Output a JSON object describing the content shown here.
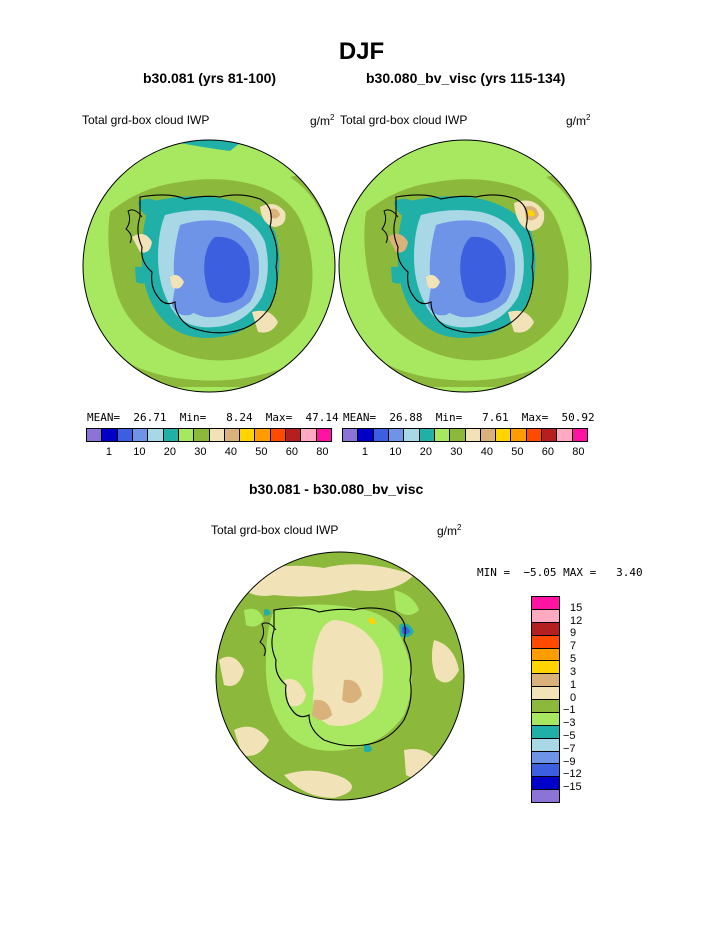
{
  "title": "DJF",
  "panels": [
    {
      "title": "b30.081 (yrs 81-100)",
      "field_label": "Total grd-box cloud IWP",
      "units_base": "g/m",
      "units_exp": "2",
      "stats_text": "MEAN=  26.71  Min=   8.24  Max=  47.14"
    },
    {
      "title": "b30.080_bv_visc (yrs 115-134)",
      "field_label": "Total grd-box cloud IWP",
      "units_base": "g/m",
      "units_exp": "2",
      "stats_text": "MEAN=  26.88  Min=   7.61  Max=  50.92"
    }
  ],
  "colorbar": {
    "colors": [
      "#8c74d6",
      "#0000c8",
      "#3c5fe0",
      "#6e94e8",
      "#a8d8e6",
      "#20b0a8",
      "#a8e860",
      "#8cb83c",
      "#f2e2b8",
      "#d8b27a",
      "#ffd400",
      "#ff9c00",
      "#ff4a00",
      "#b42020",
      "#ffaac0",
      "#ff14a0"
    ],
    "tick_labels": [
      "1",
      "10",
      "20",
      "30",
      "40",
      "50",
      "60",
      "80"
    ]
  },
  "diff": {
    "title": "b30.081 - b30.080_bv_visc",
    "field_label": "Total grd-box cloud IWP",
    "units_base": "g/m",
    "units_exp": "2",
    "stats_text": "MIN =  −5.05 MAX =   3.40",
    "colorbar": {
      "colors_top_to_bottom": [
        "#ff14a0",
        "#ffaac0",
        "#b42020",
        "#ff4a00",
        "#ff9c00",
        "#ffd400",
        "#d8b27a",
        "#f2e2b8",
        "#8cb83c",
        "#a8e860",
        "#20b0a8",
        "#a8d8e6",
        "#6e94e8",
        "#3c5fe0",
        "#0000c8",
        "#8c74d6"
      ],
      "tick_labels_top_to_bottom": [
        "15",
        "12",
        "9",
        "7",
        "5",
        "3",
        "1",
        "0",
        "−1",
        "−3",
        "−5",
        "−7",
        "−9",
        "−12",
        "−15"
      ]
    }
  }
}
